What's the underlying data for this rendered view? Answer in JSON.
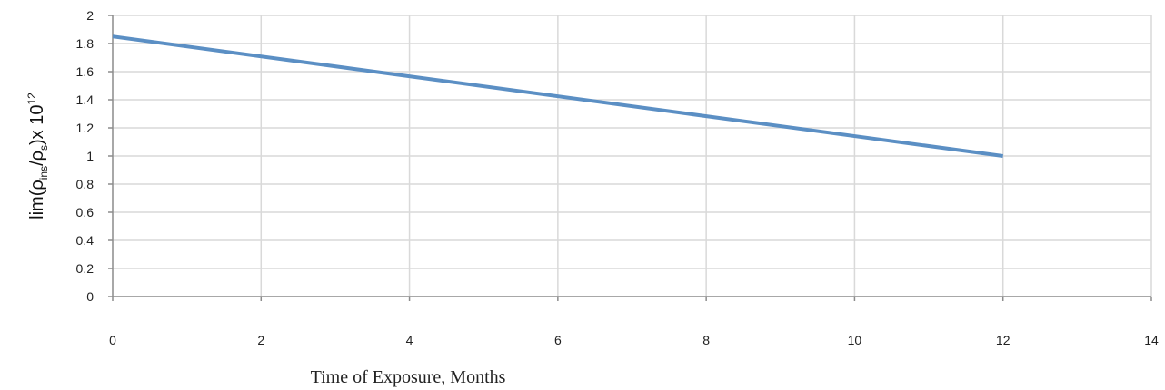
{
  "chart_data": {
    "type": "line",
    "title": "",
    "xlabel": "Time of Exposure, Months",
    "ylabel": {
      "prefix": "lim(ρ",
      "sub1": "ins",
      "mid": "/ρ",
      "sub2": "s",
      "suffix": ")x 10",
      "sup": "12"
    },
    "xlim": [
      0,
      14
    ],
    "ylim": [
      0,
      2
    ],
    "xticks": [
      "0",
      "2",
      "4",
      "6",
      "8",
      "10",
      "12",
      "14"
    ],
    "yticks": [
      "0",
      "0.2",
      "0.4",
      "0.6",
      "0.8",
      "1",
      "1.2",
      "1.4",
      "1.6",
      "1.8",
      "2"
    ],
    "grid": true,
    "legend": "none",
    "series": [
      {
        "x": [
          0,
          12
        ],
        "y": [
          1.85,
          1.0
        ],
        "color": "#5b8fc4"
      }
    ]
  }
}
